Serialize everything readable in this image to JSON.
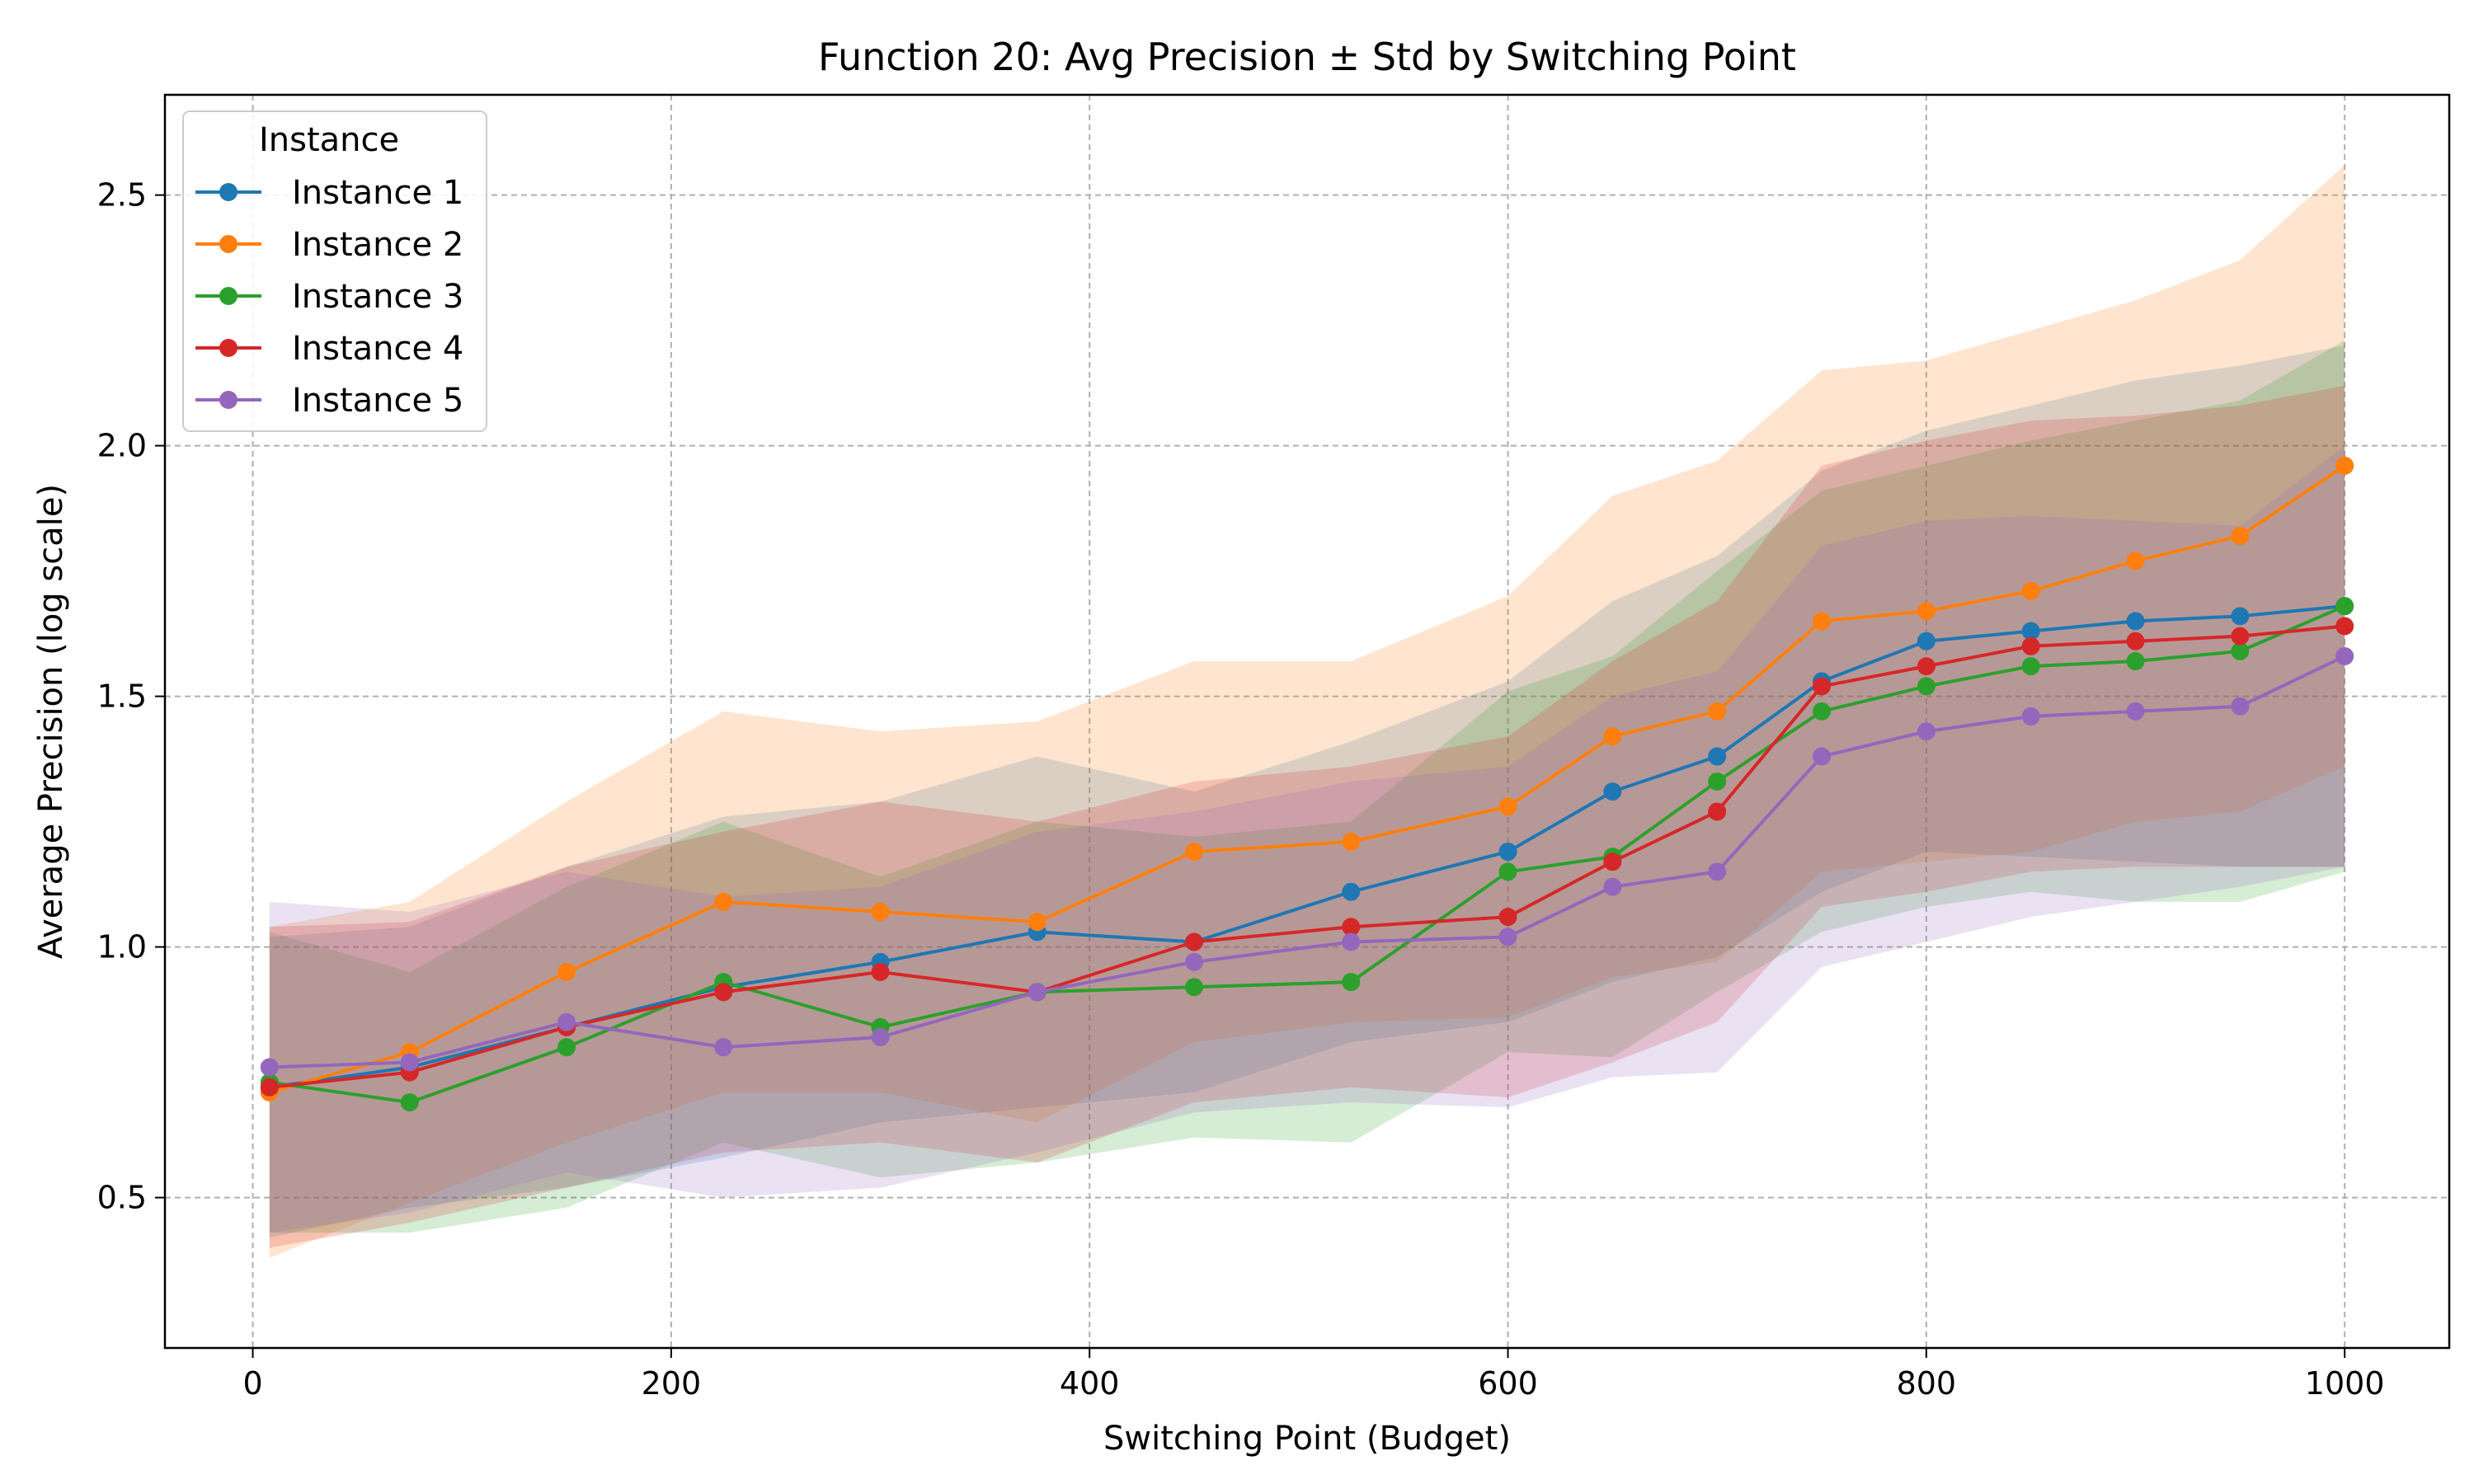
{
  "chart_data": {
    "type": "line",
    "title": "Function 20: Avg Precision ± Std by Switching Point",
    "xlabel": "Switching Point (Budget)",
    "ylabel": "Average Precision (log scale)",
    "xlim": [
      -42,
      1050
    ],
    "ylim": [
      0.2,
      2.7
    ],
    "xticks": [
      0,
      200,
      400,
      600,
      800,
      1000
    ],
    "yticks": [
      0.5,
      1.0,
      1.5,
      2.0,
      2.5
    ],
    "xtick_labels": [
      "0",
      "200",
      "400",
      "600",
      "800",
      "1000"
    ],
    "ytick_labels": [
      "0.5",
      "1.0",
      "1.5",
      "2.0",
      "2.5"
    ],
    "grid": true,
    "legend": {
      "title": "Instance",
      "placement": "top-left"
    },
    "x": [
      8,
      75,
      150,
      225,
      300,
      375,
      450,
      525,
      600,
      650,
      700,
      750,
      800,
      850,
      900,
      950,
      1000
    ],
    "series": [
      {
        "name": "Instance 1",
        "color": "#1f77b4",
        "values": [
          0.72,
          0.76,
          0.84,
          0.92,
          0.97,
          1.03,
          1.01,
          1.11,
          1.19,
          1.31,
          1.38,
          1.53,
          1.61,
          1.63,
          1.65,
          1.66,
          1.68
        ],
        "std": [
          0.3,
          0.28,
          0.32,
          0.34,
          0.32,
          0.35,
          0.3,
          0.3,
          0.34,
          0.38,
          0.4,
          0.42,
          0.42,
          0.45,
          0.48,
          0.5,
          0.52
        ]
      },
      {
        "name": "Instance 2",
        "color": "#ff7f0e",
        "values": [
          0.71,
          0.79,
          0.95,
          1.09,
          1.07,
          1.05,
          1.19,
          1.21,
          1.28,
          1.42,
          1.47,
          1.65,
          1.67,
          1.71,
          1.77,
          1.82,
          1.96
        ],
        "std": [
          0.33,
          0.3,
          0.34,
          0.38,
          0.36,
          0.4,
          0.38,
          0.36,
          0.42,
          0.48,
          0.5,
          0.5,
          0.5,
          0.52,
          0.52,
          0.55,
          0.6
        ]
      },
      {
        "name": "Instance 3",
        "color": "#2ca02c",
        "values": [
          0.73,
          0.69,
          0.8,
          0.93,
          0.84,
          0.91,
          0.92,
          0.93,
          1.15,
          1.18,
          1.33,
          1.47,
          1.52,
          1.56,
          1.57,
          1.59,
          1.68
        ],
        "std": [
          0.3,
          0.26,
          0.32,
          0.32,
          0.3,
          0.34,
          0.3,
          0.32,
          0.36,
          0.4,
          0.42,
          0.44,
          0.44,
          0.45,
          0.48,
          0.5,
          0.53
        ]
      },
      {
        "name": "Instance 4",
        "color": "#d62728",
        "values": [
          0.72,
          0.75,
          0.84,
          0.91,
          0.95,
          0.91,
          1.01,
          1.04,
          1.06,
          1.17,
          1.27,
          1.52,
          1.56,
          1.6,
          1.61,
          1.62,
          1.64
        ],
        "std": [
          0.32,
          0.3,
          0.32,
          0.32,
          0.34,
          0.34,
          0.32,
          0.32,
          0.36,
          0.4,
          0.42,
          0.44,
          0.45,
          0.45,
          0.45,
          0.46,
          0.48
        ]
      },
      {
        "name": "Instance 5",
        "color": "#9467bd",
        "values": [
          0.76,
          0.77,
          0.85,
          0.8,
          0.82,
          0.91,
          0.97,
          1.01,
          1.02,
          1.12,
          1.15,
          1.38,
          1.43,
          1.46,
          1.47,
          1.48,
          1.58
        ],
        "std": [
          0.33,
          0.3,
          0.3,
          0.3,
          0.3,
          0.32,
          0.3,
          0.32,
          0.34,
          0.38,
          0.4,
          0.42,
          0.42,
          0.4,
          0.38,
          0.36,
          0.42
        ]
      }
    ]
  }
}
